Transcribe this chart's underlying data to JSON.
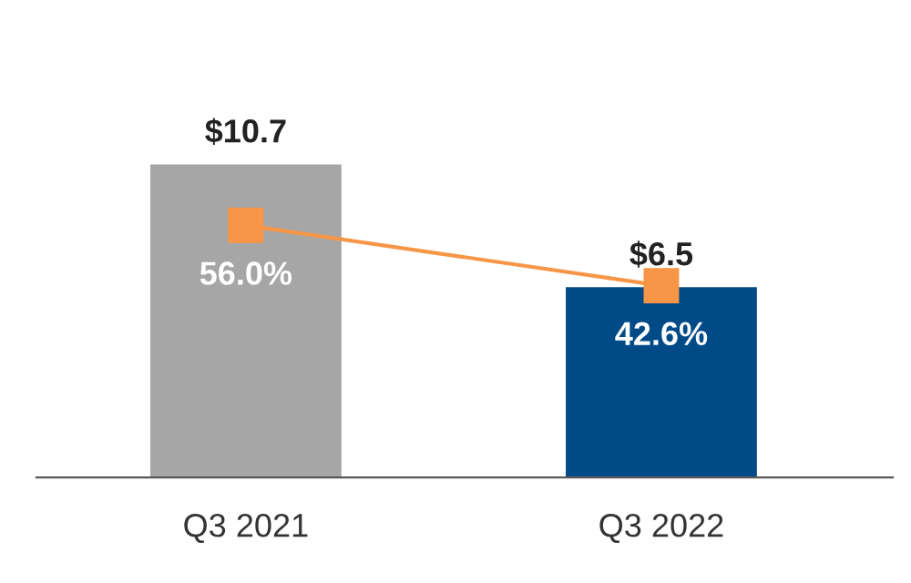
{
  "chart_data": {
    "type": "bar",
    "categories": [
      "Q3 2021",
      "Q3 2022"
    ],
    "series": [
      {
        "colors": [
          "#a6a6a6",
          "#004a87"
        ],
        "values": [
          10.7,
          6.5
        ],
        "value_labels": [
          "$10.7",
          "$6.5"
        ]
      },
      {
        "type": "line",
        "axis": "y2",
        "color": "#f79646",
        "values": [
          56.0,
          42.6
        ],
        "value_labels": [
          "56.0%",
          "42.6%"
        ],
        "marker": "square"
      }
    ]
  }
}
